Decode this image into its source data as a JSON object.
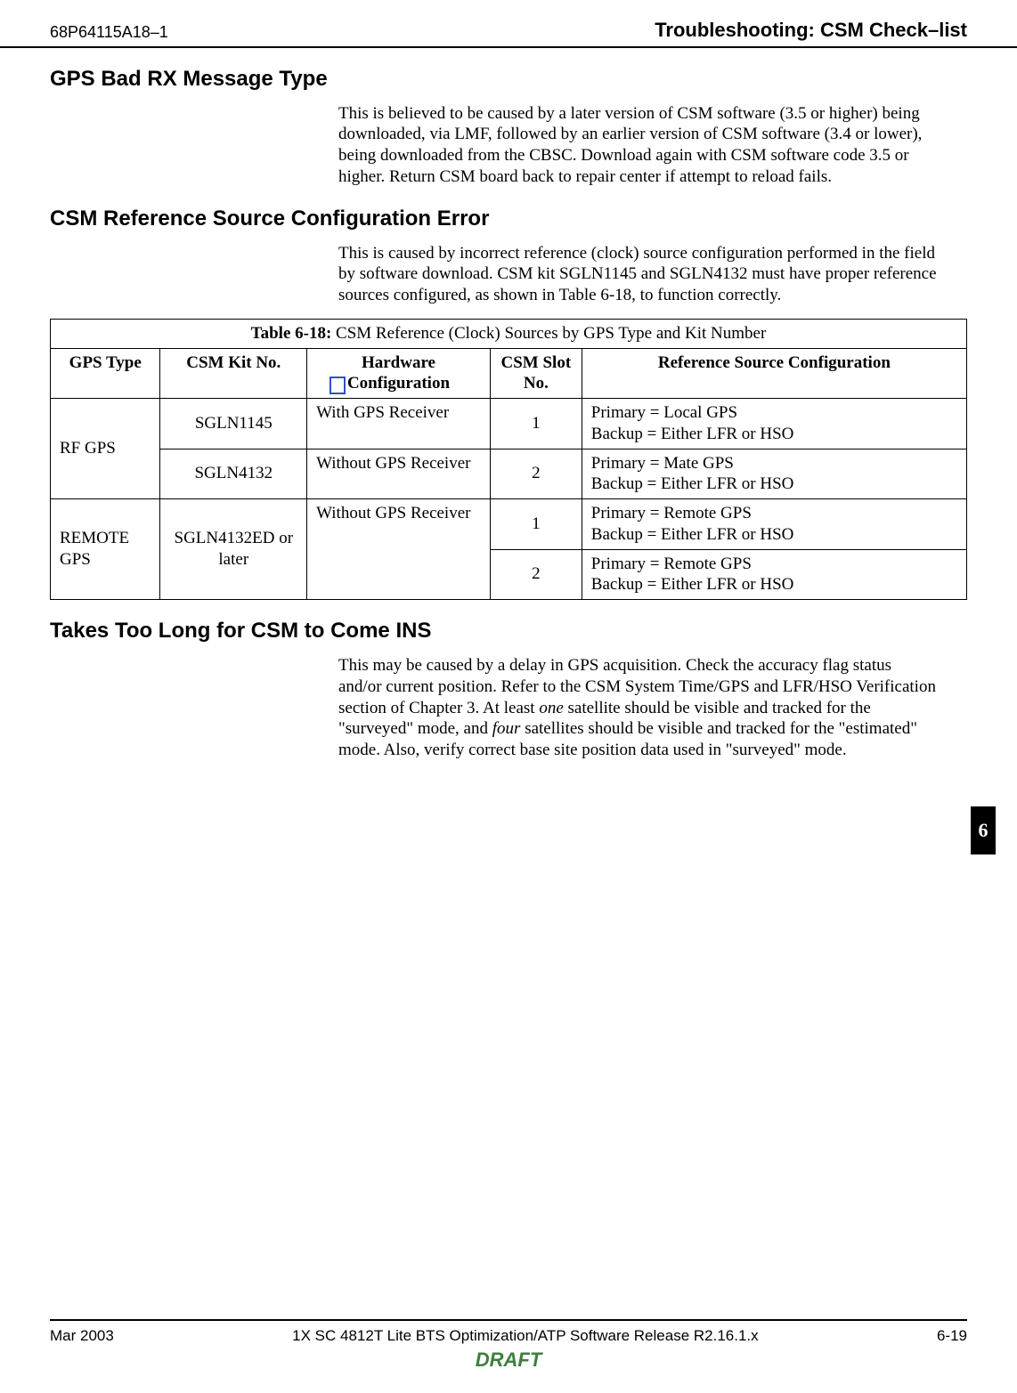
{
  "header": {
    "doc_no": "68P64115A18–1",
    "title": "Troubleshooting: CSM Check–list"
  },
  "s1": {
    "h": "GPS Bad RX Message Type",
    "p": "This is believed to be caused by a later version of CSM software (3.5 or higher) being downloaded, via LMF, followed by an earlier version of CSM software (3.4 or lower), being downloaded from the CBSC. Download again with CSM software code 3.5 or higher. Return CSM board back to repair center if attempt to reload fails."
  },
  "s2": {
    "h": "CSM Reference Source Configuration Error",
    "p": "This is caused by incorrect reference (clock) source configuration performed in the field by software download. CSM kit SGLN1145 and SGLN4132 must have proper reference sources configured, as shown in Table 6-18, to function correctly."
  },
  "table": {
    "caption_label": "Table 6-18:",
    "caption_text": " CSM Reference (Clock) Sources by GPS Type and Kit Number",
    "head": {
      "c1": "GPS Type",
      "c2": "CSM Kit No.",
      "c3": "Hardware Configuration",
      "c4": "CSM Slot No.",
      "c5": "Reference Source Configuration"
    },
    "rows": {
      "r1": {
        "gps": "RF GPS",
        "kit": "SGLN1145",
        "hw": "With GPS Receiver",
        "slot": "1",
        "ref1": "Primary = Local GPS",
        "ref2": "Backup = Either LFR or HSO"
      },
      "r2": {
        "kit": "SGLN4132",
        "hw": "Without GPS Receiver",
        "slot": "2",
        "ref1": "Primary = Mate GPS",
        "ref2": "Backup = Either LFR or HSO"
      },
      "r3": {
        "gps": "REMOTE GPS",
        "kit": "SGLN4132ED or later",
        "hw": "Without GPS Receiver",
        "slot": "1",
        "ref1": "Primary = Remote GPS",
        "ref2": "Backup = Either LFR or HSO"
      },
      "r4": {
        "slot": "2",
        "ref1": "Primary = Remote GPS",
        "ref2": "Backup = Either LFR or HSO"
      }
    }
  },
  "s3": {
    "h": "Takes Too Long for CSM to Come INS",
    "p_a": "This may be caused by a delay in GPS acquisition. Check the accuracy flag status and/or current position. Refer to the CSM System Time/GPS and LFR/HSO Verification section of Chapter 3. At least ",
    "p_one": "one",
    "p_b": " satellite should be visible and tracked for the \"surveyed\" mode, and ",
    "p_four": "four",
    "p_c": " satellites should be visible and tracked for the \"estimated\" mode. Also, verify correct base site position data used in \"surveyed\" mode."
  },
  "side_tab": "6",
  "footer": {
    "left": "Mar 2003",
    "center": "1X SC 4812T Lite BTS Optimization/ATP Software Release R2.16.1.x",
    "right": "6-19",
    "draft": "DRAFT"
  }
}
